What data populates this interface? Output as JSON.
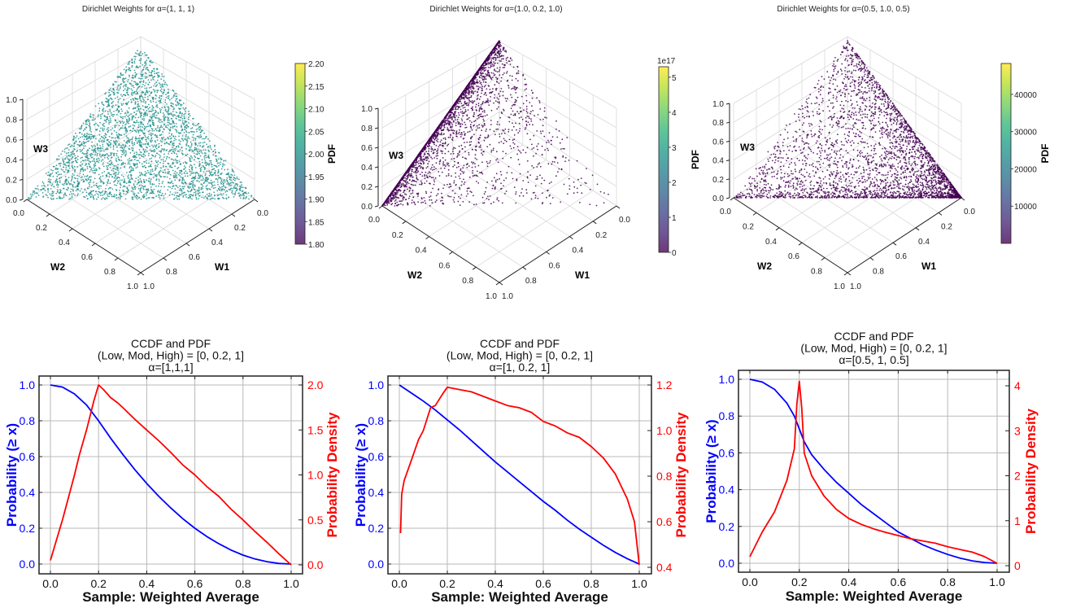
{
  "chart_data": [
    {
      "type": "scatter3d",
      "title": "Dirichlet Weights for α=(1, 1, 1)",
      "alpha": [
        1,
        1,
        1
      ],
      "xlabel": "W1",
      "ylabel": "W2",
      "zlabel": "W3",
      "axis_ticks": [
        "0.0",
        "0.2",
        "0.4",
        "0.6",
        "0.8",
        "1.0"
      ],
      "point_color": "#21918c",
      "colorbar": {
        "label": "PDF",
        "range": [
          1.8,
          2.2
        ],
        "ticks": [
          1.8,
          1.85,
          1.9,
          1.95,
          2.0,
          2.05,
          2.1,
          2.15,
          2.2
        ],
        "tick_labels": [
          "1.80",
          "1.85",
          "1.90",
          "1.95",
          "2.00",
          "2.05",
          "2.10",
          "2.15",
          "2.20"
        ],
        "offset_label": "",
        "colormap": "viridis"
      }
    },
    {
      "type": "scatter3d",
      "title": "Dirichlet Weights for α=(1.0, 0.2, 1.0)",
      "alpha": [
        1.0,
        0.2,
        1.0
      ],
      "xlabel": "W1",
      "ylabel": "W2",
      "zlabel": "W3",
      "axis_ticks": [
        "0.0",
        "0.2",
        "0.4",
        "0.6",
        "0.8",
        "1.0"
      ],
      "point_color": "#440154",
      "colorbar": {
        "label": "PDF",
        "range": [
          0,
          5.3
        ],
        "ticks": [
          0,
          1,
          2,
          3,
          4,
          5
        ],
        "tick_labels": [
          "0",
          "1",
          "2",
          "3",
          "4",
          "5"
        ],
        "offset_label": "1e17",
        "colormap": "viridis"
      }
    },
    {
      "type": "scatter3d",
      "title": "Dirichlet Weights for α=(0.5, 1.0, 0.5)",
      "alpha": [
        0.5,
        1.0,
        0.5
      ],
      "xlabel": "W1",
      "ylabel": "W2",
      "zlabel": "W3",
      "axis_ticks": [
        "0.0",
        "0.2",
        "0.4",
        "0.6",
        "0.8",
        "1.0"
      ],
      "point_color": "#440154",
      "colorbar": {
        "label": "PDF",
        "range": [
          0,
          48300
        ],
        "ticks": [
          10000,
          20000,
          30000,
          40000
        ],
        "tick_labels": [
          "10000",
          "20000",
          "30000",
          "40000"
        ],
        "offset_label": "",
        "colormap": "viridis"
      }
    },
    {
      "type": "line",
      "title": [
        "CCDF and PDF",
        "(Low, Mod, High) = [0, 0.2, 1]",
        "α=[1,1,1]"
      ],
      "xlabel": "Sample: Weighted Average",
      "ylabel_left": "Probability (≥ x)",
      "ylabel_right": "Probability Density",
      "xlim": [
        0,
        1
      ],
      "ylim_left": [
        0,
        1
      ],
      "ylim_right": [
        0,
        2.0
      ],
      "xticks": [
        "0.0",
        "0.2",
        "0.4",
        "0.6",
        "0.8",
        "1.0"
      ],
      "yticks_left": [
        "0.0",
        "0.2",
        "0.4",
        "0.6",
        "0.8",
        "1.0"
      ],
      "yticks_right": [
        "0.0",
        "0.5",
        "1.0",
        "1.5",
        "2.0"
      ],
      "grid": true,
      "colors": {
        "ccdf": "#0000ff",
        "pdf": "#ff0000"
      },
      "ccdf": {
        "x": [
          0,
          0.05,
          0.1,
          0.15,
          0.2,
          0.25,
          0.3,
          0.35,
          0.4,
          0.45,
          0.5,
          0.55,
          0.6,
          0.65,
          0.7,
          0.75,
          0.8,
          0.85,
          0.9,
          0.95,
          1.0
        ],
        "y": [
          1.0,
          0.988,
          0.95,
          0.888,
          0.8,
          0.703,
          0.613,
          0.528,
          0.45,
          0.378,
          0.313,
          0.253,
          0.2,
          0.153,
          0.113,
          0.078,
          0.05,
          0.028,
          0.013,
          0.003,
          0.0
        ]
      },
      "pdf": {
        "x": [
          0,
          0.05,
          0.1,
          0.12,
          0.15,
          0.18,
          0.2,
          0.22,
          0.25,
          0.28,
          0.3,
          0.35,
          0.4,
          0.45,
          0.5,
          0.55,
          0.6,
          0.65,
          0.7,
          0.75,
          0.8,
          0.85,
          0.9,
          0.95,
          1.0
        ],
        "y": [
          0.05,
          0.5,
          1.0,
          1.22,
          1.5,
          1.82,
          2.0,
          1.95,
          1.86,
          1.8,
          1.75,
          1.62,
          1.5,
          1.38,
          1.25,
          1.11,
          1.0,
          0.87,
          0.76,
          0.62,
          0.5,
          0.37,
          0.25,
          0.12,
          0.0
        ]
      }
    },
    {
      "type": "line",
      "title": [
        "CCDF and PDF",
        "(Low, Mod, High) = [0, 0.2, 1]",
        "α=[1, 0.2, 1]"
      ],
      "xlabel": "Sample: Weighted Average",
      "ylabel_left": "Probability (≥ x)",
      "ylabel_right": "Probability Density",
      "xlim": [
        0,
        1
      ],
      "ylim_left": [
        0,
        1
      ],
      "ylim_right": [
        0.4,
        1.2
      ],
      "xticks": [
        "0.0",
        "0.2",
        "0.4",
        "0.6",
        "0.8",
        "1.0"
      ],
      "yticks_left": [
        "0.0",
        "0.2",
        "0.4",
        "0.6",
        "0.8",
        "1.0"
      ],
      "yticks_right": [
        "0.4",
        "0.6",
        "0.8",
        "1.0",
        "1.2"
      ],
      "grid": true,
      "colors": {
        "ccdf": "#0000ff",
        "pdf": "#ff0000"
      },
      "ccdf": {
        "x": [
          0,
          0.05,
          0.1,
          0.15,
          0.2,
          0.25,
          0.3,
          0.35,
          0.4,
          0.45,
          0.5,
          0.55,
          0.6,
          0.65,
          0.7,
          0.75,
          0.8,
          0.85,
          0.9,
          0.95,
          1.0
        ],
        "y": [
          1.0,
          0.955,
          0.91,
          0.86,
          0.805,
          0.75,
          0.69,
          0.63,
          0.57,
          0.515,
          0.46,
          0.405,
          0.35,
          0.3,
          0.245,
          0.195,
          0.15,
          0.105,
          0.065,
          0.03,
          0.0
        ]
      },
      "pdf": {
        "x": [
          0.005,
          0.01,
          0.02,
          0.05,
          0.08,
          0.1,
          0.13,
          0.15,
          0.18,
          0.2,
          0.25,
          0.3,
          0.35,
          0.4,
          0.45,
          0.5,
          0.55,
          0.6,
          0.65,
          0.7,
          0.75,
          0.8,
          0.85,
          0.9,
          0.95,
          0.98,
          1.0
        ],
        "y": [
          0.55,
          0.72,
          0.78,
          0.87,
          0.96,
          1.0,
          1.1,
          1.11,
          1.16,
          1.19,
          1.18,
          1.17,
          1.15,
          1.13,
          1.11,
          1.1,
          1.08,
          1.04,
          1.02,
          0.99,
          0.97,
          0.93,
          0.88,
          0.81,
          0.7,
          0.6,
          0.41
        ]
      }
    },
    {
      "type": "line",
      "title": [
        "CCDF and PDF",
        "(Low, Mod, High) = [0, 0.2, 1]",
        "α=[0.5, 1, 0.5]"
      ],
      "xlabel": "Sample: Weighted Average",
      "ylabel_left": "Probability (≥ x)",
      "ylabel_right": "Probability Density",
      "xlim": [
        0,
        1
      ],
      "ylim_left": [
        0,
        1
      ],
      "ylim_right": [
        0,
        4.1
      ],
      "xticks": [
        "0.0",
        "0.2",
        "0.4",
        "0.6",
        "0.8",
        "1.0"
      ],
      "yticks_left": [
        "0.0",
        "0.2",
        "0.4",
        "0.6",
        "0.8",
        "1.0"
      ],
      "yticks_right": [
        "0",
        "1",
        "2",
        "3",
        "4"
      ],
      "grid": true,
      "colors": {
        "ccdf": "#0000ff",
        "pdf": "#ff0000"
      },
      "ccdf": {
        "x": [
          0,
          0.05,
          0.1,
          0.15,
          0.18,
          0.2,
          0.22,
          0.25,
          0.3,
          0.35,
          0.4,
          0.45,
          0.5,
          0.55,
          0.6,
          0.65,
          0.7,
          0.75,
          0.8,
          0.85,
          0.9,
          0.95,
          1.0
        ],
        "y": [
          1.0,
          0.985,
          0.945,
          0.87,
          0.8,
          0.73,
          0.66,
          0.59,
          0.51,
          0.44,
          0.38,
          0.32,
          0.27,
          0.22,
          0.17,
          0.135,
          0.1,
          0.072,
          0.048,
          0.028,
          0.013,
          0.004,
          0.0
        ]
      },
      "pdf": {
        "x": [
          0,
          0.05,
          0.1,
          0.15,
          0.18,
          0.19,
          0.2,
          0.21,
          0.22,
          0.25,
          0.3,
          0.35,
          0.4,
          0.45,
          0.5,
          0.55,
          0.6,
          0.65,
          0.7,
          0.75,
          0.8,
          0.85,
          0.9,
          0.95,
          1.0
        ],
        "y": [
          0.2,
          0.75,
          1.2,
          1.9,
          2.6,
          3.6,
          4.1,
          3.5,
          2.5,
          2.0,
          1.55,
          1.25,
          1.05,
          0.92,
          0.82,
          0.74,
          0.67,
          0.6,
          0.55,
          0.5,
          0.42,
          0.36,
          0.3,
          0.2,
          0.05
        ]
      }
    }
  ]
}
